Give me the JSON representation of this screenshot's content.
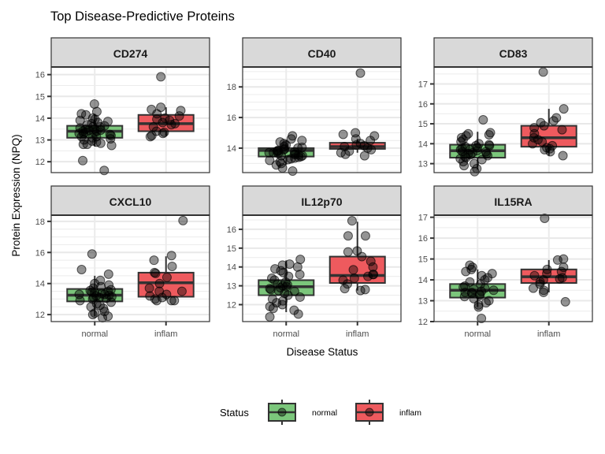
{
  "chart_data": {
    "type": "boxplot",
    "title": "Top Disease-Predictive Proteins",
    "xlabel": "Disease Status",
    "ylabel": "Protein Expression (NPQ)",
    "categories": [
      "normal",
      "inflam"
    ],
    "colors": {
      "normal": "#7bc67b",
      "inflam": "#ee5a5e"
    },
    "grid": true,
    "legend": {
      "title": "Status",
      "position": "bottom",
      "entries": [
        {
          "label": "normal",
          "color": "#7bc67b"
        },
        {
          "label": "inflam",
          "color": "#ee5a5e"
        }
      ]
    },
    "panels": [
      {
        "name": "CD274",
        "ylim": [
          11.5,
          16.35
        ],
        "yticks": [
          12,
          13,
          14,
          15,
          16
        ],
        "boxes": {
          "normal": {
            "q1": 13.1,
            "median": 13.4,
            "q3": 13.65,
            "whisker_low": 12.7,
            "whisker_high": 14.2
          },
          "inflam": {
            "q1": 13.4,
            "median": 13.75,
            "q3": 14.15,
            "whisker_low": 13.2,
            "whisker_high": 14.5
          }
        },
        "points": {
          "normal": [
            14.65,
            14.3,
            14.2,
            14.15,
            14.0,
            13.95,
            13.9,
            13.85,
            13.8,
            13.75,
            13.7,
            13.65,
            13.6,
            13.55,
            13.5,
            13.5,
            13.45,
            13.4,
            13.4,
            13.35,
            13.3,
            13.3,
            13.25,
            13.2,
            13.15,
            13.1,
            13.05,
            13.0,
            12.95,
            12.9,
            12.85,
            12.8,
            12.8,
            12.75,
            13.6,
            13.35,
            13.15,
            13.45,
            12.05,
            11.6
          ],
          "inflam": [
            15.9,
            14.5,
            14.4,
            14.35,
            14.2,
            14.1,
            14.0,
            13.95,
            13.9,
            13.8,
            13.75,
            13.7,
            13.6,
            13.4,
            13.35,
            13.2,
            13.15,
            13.3
          ]
        }
      },
      {
        "name": "CD40",
        "ylim": [
          12.4,
          19.3
        ],
        "yticks": [
          14,
          16,
          18
        ],
        "boxes": {
          "normal": {
            "q1": 13.45,
            "median": 13.85,
            "q3": 14.0,
            "whisker_low": 12.9,
            "whisker_high": 14.5
          },
          "inflam": {
            "q1": 13.95,
            "median": 14.1,
            "q3": 14.35,
            "whisker_low": 13.7,
            "whisker_high": 14.6
          }
        },
        "points": {
          "normal": [
            14.8,
            14.6,
            14.5,
            14.4,
            14.3,
            14.2,
            14.1,
            14.0,
            13.95,
            13.9,
            13.85,
            13.8,
            13.75,
            13.7,
            13.65,
            13.6,
            13.55,
            13.5,
            13.45,
            13.4,
            13.35,
            13.3,
            13.25,
            13.2,
            13.1,
            13.0,
            12.9,
            12.7,
            12.5,
            13.6,
            13.8,
            14.05,
            13.7,
            13.5
          ],
          "inflam": [
            18.9,
            15.0,
            14.9,
            14.8,
            14.6,
            14.5,
            14.3,
            14.2,
            14.1,
            14.0,
            13.9,
            13.8,
            13.7,
            13.6,
            13.5,
            14.15
          ]
        }
      },
      {
        "name": "CD83",
        "ylim": [
          12.55,
          17.85
        ],
        "yticks": [
          13,
          14,
          15,
          16,
          17
        ],
        "boxes": {
          "normal": {
            "q1": 13.3,
            "median": 13.65,
            "q3": 13.95,
            "whisker_low": 12.7,
            "whisker_high": 14.6
          },
          "inflam": {
            "q1": 13.85,
            "median": 14.3,
            "q3": 14.9,
            "whisker_low": 13.4,
            "whisker_high": 15.75
          }
        },
        "points": {
          "normal": [
            15.2,
            14.55,
            14.5,
            14.45,
            14.4,
            14.3,
            14.2,
            14.1,
            14.0,
            13.95,
            13.9,
            13.85,
            13.8,
            13.75,
            13.7,
            13.65,
            13.6,
            13.55,
            13.5,
            13.45,
            13.4,
            13.35,
            13.3,
            13.25,
            13.2,
            13.1,
            13.0,
            12.9,
            12.75,
            12.6,
            13.7,
            13.5,
            13.9,
            13.6
          ],
          "inflam": [
            17.6,
            15.75,
            15.3,
            15.15,
            15.05,
            14.9,
            14.8,
            14.7,
            14.5,
            14.3,
            14.2,
            14.1,
            14.0,
            13.9,
            13.8,
            13.7,
            13.6,
            13.4,
            13.75
          ]
        }
      },
      {
        "name": "CXCL10",
        "ylim": [
          11.55,
          18.4
        ],
        "yticks": [
          12,
          14,
          16,
          18
        ],
        "boxes": {
          "normal": {
            "q1": 12.85,
            "median": 13.25,
            "q3": 13.65,
            "whisker_low": 11.9,
            "whisker_high": 14.5
          },
          "inflam": {
            "q1": 13.15,
            "median": 14.05,
            "q3": 14.7,
            "whisker_low": 12.9,
            "whisker_high": 15.75
          }
        },
        "points": {
          "normal": [
            15.9,
            14.9,
            14.6,
            14.2,
            14.0,
            13.9,
            13.8,
            13.7,
            13.6,
            13.5,
            13.45,
            13.4,
            13.35,
            13.3,
            13.25,
            13.2,
            13.15,
            13.1,
            13.05,
            13.0,
            12.9,
            12.8,
            12.7,
            12.6,
            12.5,
            12.4,
            12.2,
            12.1,
            12.0,
            11.9,
            11.8,
            13.3,
            13.55,
            13.1
          ],
          "inflam": [
            18.05,
            15.8,
            15.5,
            15.1,
            14.7,
            14.65,
            14.4,
            14.0,
            13.7,
            13.5,
            13.3,
            13.2,
            13.1,
            13.0,
            12.9,
            12.9,
            12.9,
            13.5
          ]
        }
      },
      {
        "name": "IL12p70",
        "ylim": [
          11.1,
          16.75
        ],
        "yticks": [
          12,
          13,
          14,
          15,
          16
        ],
        "boxes": {
          "normal": {
            "q1": 12.5,
            "median": 12.95,
            "q3": 13.3,
            "whisker_low": 11.6,
            "whisker_high": 14.35
          },
          "inflam": {
            "q1": 13.15,
            "median": 13.55,
            "q3": 14.55,
            "whisker_low": 12.75,
            "whisker_high": 16.4
          }
        },
        "points": {
          "normal": [
            14.4,
            14.15,
            14.1,
            14.0,
            13.9,
            13.8,
            13.7,
            13.6,
            13.5,
            13.4,
            13.3,
            13.2,
            13.1,
            13.0,
            12.95,
            12.9,
            12.85,
            12.8,
            12.7,
            12.6,
            12.5,
            12.4,
            12.3,
            12.2,
            12.1,
            12.0,
            11.9,
            11.8,
            11.7,
            11.5,
            11.35,
            13.05,
            12.75
          ],
          "inflam": [
            16.45,
            15.65,
            15.65,
            14.85,
            14.8,
            14.55,
            14.3,
            14.0,
            13.85,
            13.6,
            13.5,
            13.4,
            13.3,
            13.1,
            12.85,
            12.8,
            12.75,
            13.6
          ]
        }
      },
      {
        "name": "IL15RA",
        "ylim": [
          12.0,
          17.1
        ],
        "yticks": [
          12,
          13,
          14,
          15,
          16,
          17
        ],
        "boxes": {
          "normal": {
            "q1": 13.15,
            "median": 13.5,
            "q3": 13.8,
            "whisker_low": 12.7,
            "whisker_high": 14.5
          },
          "inflam": {
            "q1": 13.85,
            "median": 14.15,
            "q3": 14.5,
            "whisker_low": 13.4,
            "whisker_high": 14.95
          }
        },
        "points": {
          "normal": [
            14.7,
            14.6,
            14.5,
            14.4,
            14.3,
            14.2,
            14.1,
            14.0,
            13.9,
            13.8,
            13.7,
            13.6,
            13.5,
            13.45,
            13.4,
            13.35,
            13.3,
            13.25,
            13.2,
            13.1,
            13.0,
            12.9,
            12.8,
            12.7,
            12.15,
            13.55,
            13.65,
            13.4
          ],
          "inflam": [
            16.95,
            15.0,
            14.95,
            14.6,
            14.5,
            14.4,
            14.3,
            14.2,
            14.1,
            14.0,
            13.9,
            13.8,
            13.6,
            13.5,
            13.4,
            12.95,
            14.05
          ]
        }
      }
    ]
  }
}
